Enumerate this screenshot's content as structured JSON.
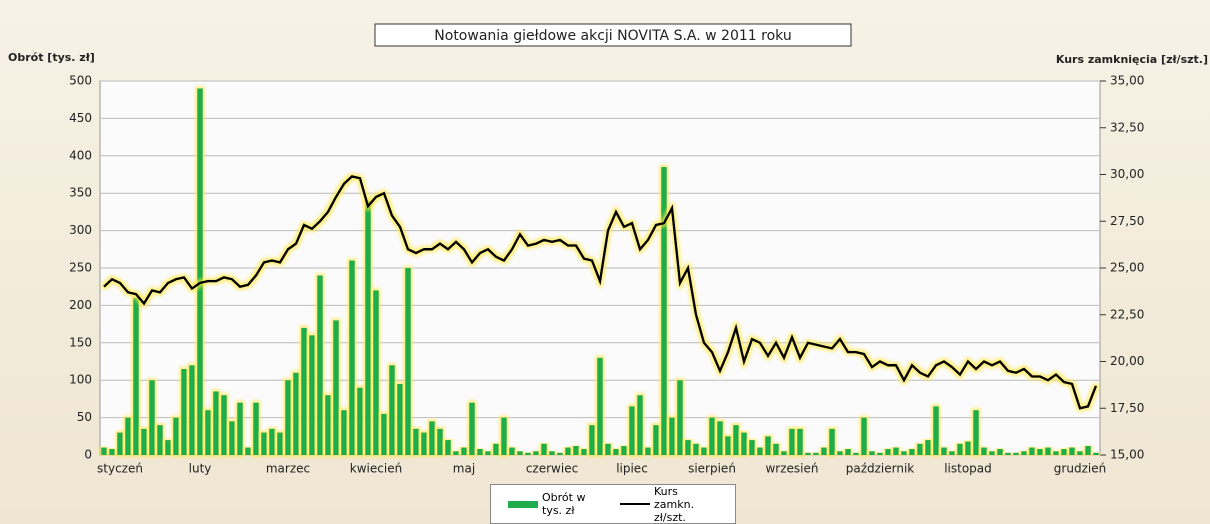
{
  "chart_data": {
    "type": "combo",
    "title": "Notowania giełdowe akcji NOVITA S.A. w 2011 roku",
    "y_label": "Obrót [tys. zł]",
    "y2_label": "Kurs zamknięcia [zł/szt.]",
    "categories": [
      null,
      null,
      "styczeń",
      null,
      null,
      null,
      null,
      null,
      null,
      null,
      null,
      null,
      "luty",
      null,
      null,
      null,
      null,
      null,
      null,
      null,
      null,
      null,
      null,
      "marzec",
      null,
      null,
      null,
      null,
      null,
      null,
      null,
      null,
      null,
      null,
      "kwiecień",
      null,
      null,
      null,
      null,
      null,
      null,
      null,
      null,
      null,
      null,
      "maj",
      null,
      null,
      null,
      null,
      null,
      null,
      null,
      null,
      null,
      null,
      "czerwiec",
      null,
      null,
      null,
      null,
      null,
      null,
      null,
      null,
      null,
      "lipiec",
      null,
      null,
      null,
      null,
      null,
      null,
      null,
      null,
      null,
      "sierpień",
      null,
      null,
      null,
      null,
      null,
      null,
      null,
      null,
      null,
      "wrzesień",
      null,
      null,
      null,
      null,
      null,
      null,
      null,
      null,
      null,
      null,
      "październik",
      null,
      null,
      null,
      null,
      null,
      null,
      null,
      null,
      null,
      null,
      "listopad",
      null,
      null,
      null,
      null,
      null,
      null,
      null,
      null,
      null,
      null,
      null,
      null,
      null,
      "grudzień",
      null,
      null
    ],
    "series": [
      {
        "name": "Obrót w tys. zł",
        "type": "bar",
        "color": "#1fae4b",
        "values": [
          10,
          8,
          30,
          50,
          210,
          35,
          100,
          40,
          20,
          50,
          115,
          120,
          490,
          60,
          85,
          80,
          45,
          70,
          10,
          70,
          30,
          35,
          30,
          100,
          110,
          170,
          160,
          240,
          80,
          180,
          60,
          260,
          90,
          340,
          220,
          55,
          120,
          95,
          250,
          35,
          30,
          45,
          35,
          20,
          5,
          10,
          70,
          8,
          5,
          15,
          50,
          10,
          5,
          3,
          5,
          15,
          5,
          3,
          10,
          12,
          8,
          40,
          130,
          15,
          8,
          12,
          65,
          80,
          10,
          40,
          385,
          50,
          100,
          20,
          15,
          10,
          50,
          45,
          25,
          40,
          30,
          20,
          10,
          25,
          15,
          5,
          35,
          35,
          3,
          3,
          10,
          35,
          5,
          8,
          3,
          50,
          5,
          3,
          8,
          10,
          5,
          8,
          15,
          20,
          65,
          10,
          5,
          15,
          18,
          60,
          10,
          5,
          8,
          3,
          3,
          5,
          10,
          8,
          10,
          5,
          8,
          10,
          5,
          12,
          3
        ]
      },
      {
        "name": "Kurs zamkn. zł/szt.",
        "type": "line",
        "axis": "y2",
        "color": "#000000",
        "values": [
          24.0,
          24.4,
          24.2,
          23.7,
          23.6,
          23.1,
          23.8,
          23.7,
          24.2,
          24.4,
          24.5,
          23.9,
          24.2,
          24.3,
          24.3,
          24.5,
          24.4,
          24.0,
          24.1,
          24.6,
          25.3,
          25.4,
          25.3,
          26.0,
          26.3,
          27.3,
          27.1,
          27.5,
          28.0,
          28.8,
          29.5,
          29.9,
          29.8,
          28.3,
          28.8,
          29.0,
          27.8,
          27.2,
          26.0,
          25.8,
          26.0,
          26.0,
          26.3,
          26.0,
          26.4,
          26.0,
          25.3,
          25.8,
          26.0,
          25.6,
          25.4,
          26.0,
          26.8,
          26.2,
          26.3,
          26.5,
          26.4,
          26.5,
          26.2,
          26.2,
          25.5,
          25.4,
          24.3,
          27.0,
          28.0,
          27.2,
          27.4,
          26.0,
          26.5,
          27.3,
          27.4,
          28.2,
          24.2,
          25.0,
          22.5,
          21.0,
          20.5,
          19.5,
          20.5,
          21.8,
          20.0,
          21.2,
          21.0,
          20.3,
          21.0,
          20.2,
          21.3,
          20.2,
          21.0,
          20.9,
          20.8,
          20.7,
          21.2,
          20.5,
          20.5,
          20.4,
          19.7,
          20.0,
          19.8,
          19.8,
          19.0,
          19.8,
          19.4,
          19.2,
          19.8,
          20.0,
          19.7,
          19.3,
          20.0,
          19.6,
          20.0,
          19.8,
          20.0,
          19.5,
          19.4,
          19.6,
          19.2,
          19.2,
          19.0,
          19.3,
          18.9,
          18.8,
          17.5,
          17.6,
          18.7
        ]
      }
    ],
    "ylim": [
      0,
      500
    ],
    "yticks": [
      0,
      50,
      100,
      150,
      200,
      250,
      300,
      350,
      400,
      450,
      500
    ],
    "y2lim": [
      15,
      35
    ],
    "y2ticks": [
      {
        "value": 15,
        "label": "15,00"
      },
      {
        "value": 17.5,
        "label": "17,50"
      },
      {
        "value": 20,
        "label": "20,00"
      },
      {
        "value": 22.5,
        "label": "22,50"
      },
      {
        "value": 25,
        "label": "25,00"
      },
      {
        "value": 27.5,
        "label": "27,50"
      },
      {
        "value": 30,
        "label": "30,00"
      },
      {
        "value": 32.5,
        "label": "32,50"
      },
      {
        "value": 35,
        "label": "35,00"
      }
    ],
    "grid": true,
    "legend": "bottom"
  }
}
